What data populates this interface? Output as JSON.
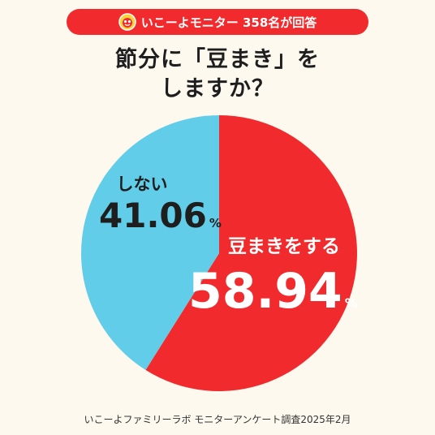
{
  "header": {
    "badge_text": "いこーよモニター 358名が回答",
    "title_line1": "節分に「豆まき」を",
    "title_line2": "しますか？"
  },
  "chart_data": {
    "type": "pie",
    "categories": [
      "豆まきをする",
      "しない"
    ],
    "values": [
      58.94,
      41.06
    ],
    "value_labels": [
      "58.94",
      "41.06"
    ],
    "unit": "%",
    "colors": [
      "#F12B2D",
      "#62CDE8"
    ]
  },
  "footer": {
    "source": "いこーよファミリーラボ モニターアンケート調査2025年2月"
  }
}
